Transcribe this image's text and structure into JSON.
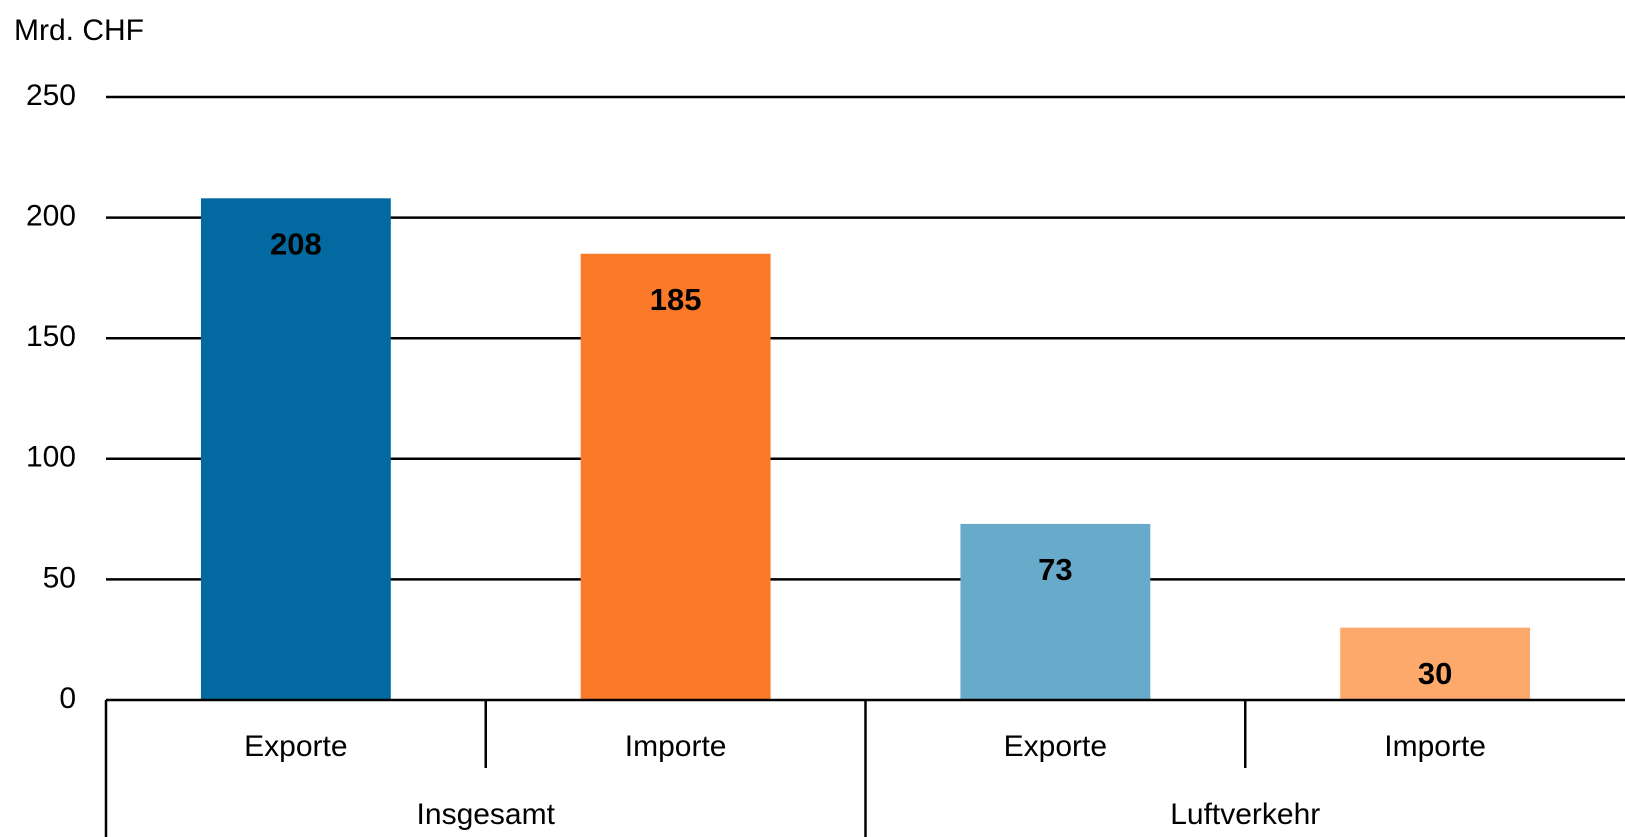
{
  "chart_data": {
    "type": "bar",
    "y_label": "Mrd. CHF",
    "categories": [
      "Exporte",
      "Importe",
      "Exporte",
      "Importe"
    ],
    "groups": [
      "Insgesamt",
      "Luftverkehr"
    ],
    "values": [
      208,
      185,
      73,
      30
    ],
    "colors": [
      "#036aa1",
      "#fa7a2a",
      "#68aac9",
      "#fda96c"
    ],
    "ylim": [
      0,
      250
    ],
    "yticks": [
      0,
      50,
      100,
      150,
      200,
      250
    ],
    "grid": true
  }
}
